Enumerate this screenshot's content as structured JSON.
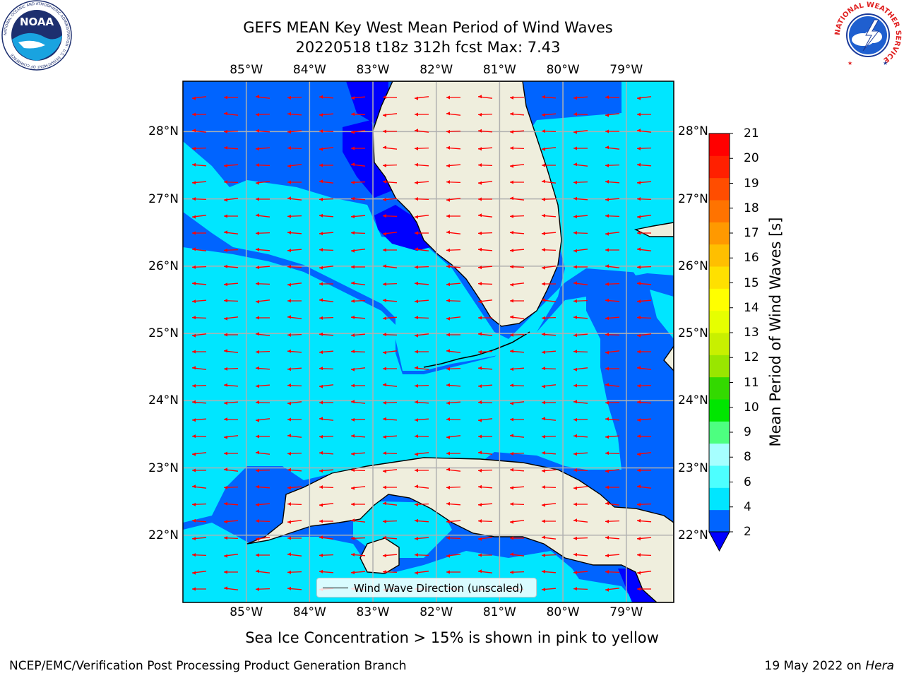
{
  "header": {
    "title_line1": "GEFS MEAN Key West Mean Period of Wind Waves",
    "title_line2": "20220518 t18z 312h fcst   Max: 7.43"
  },
  "logos": {
    "left": {
      "text": "NOAA",
      "ring_text": "NATIONAL OCEANIC AND ATMOSPHERIC ADMINISTRATION · U.S. DEPARTMENT OF COMMERCE"
    },
    "right": {
      "ring_text": "NATIONAL WEATHER SERVICE"
    }
  },
  "map": {
    "lon_ticks": [
      "85°W",
      "84°W",
      "83°W",
      "82°W",
      "81°W",
      "80°W",
      "79°W"
    ],
    "lat_ticks": [
      "28°N",
      "27°N",
      "26°N",
      "25°N",
      "24°N",
      "23°N",
      "22°N"
    ],
    "extent": {
      "lon_min": -86.0,
      "lon_max": -78.25,
      "lat_min": 21.0,
      "lat_max": 28.75
    },
    "legend_label": "Wind Wave Direction (unscaled)",
    "arrow_color": "#ff0000",
    "land_color": "#efeedd",
    "grid": true
  },
  "colorbar": {
    "label": "Mean Period of Wind Waves [s]",
    "ticks": [
      "2",
      "4",
      "6",
      "8",
      "9",
      "10",
      "11",
      "12",
      "13",
      "14",
      "15",
      "16",
      "17",
      "18",
      "19",
      "20",
      "21"
    ],
    "colors": [
      "#0064ff",
      "#00e6ff",
      "#4dffff",
      "#a6ffff",
      "#4dff80",
      "#00e600",
      "#33d900",
      "#99e600",
      "#c8f000",
      "#e6ff00",
      "#ffff00",
      "#ffe000",
      "#ffbf00",
      "#ff9900",
      "#ff7300",
      "#ff4d00",
      "#ff2000",
      "#ff0000"
    ],
    "under_color": "#0000ff"
  },
  "footnote": "Sea Ice Concentration > 15% is shown in pink to yellow",
  "footer": {
    "left": "NCEP/EMC/Verification Post Processing Product Generation Branch",
    "right_prefix": "19 May 2022 on ",
    "right_host": "Hera"
  }
}
